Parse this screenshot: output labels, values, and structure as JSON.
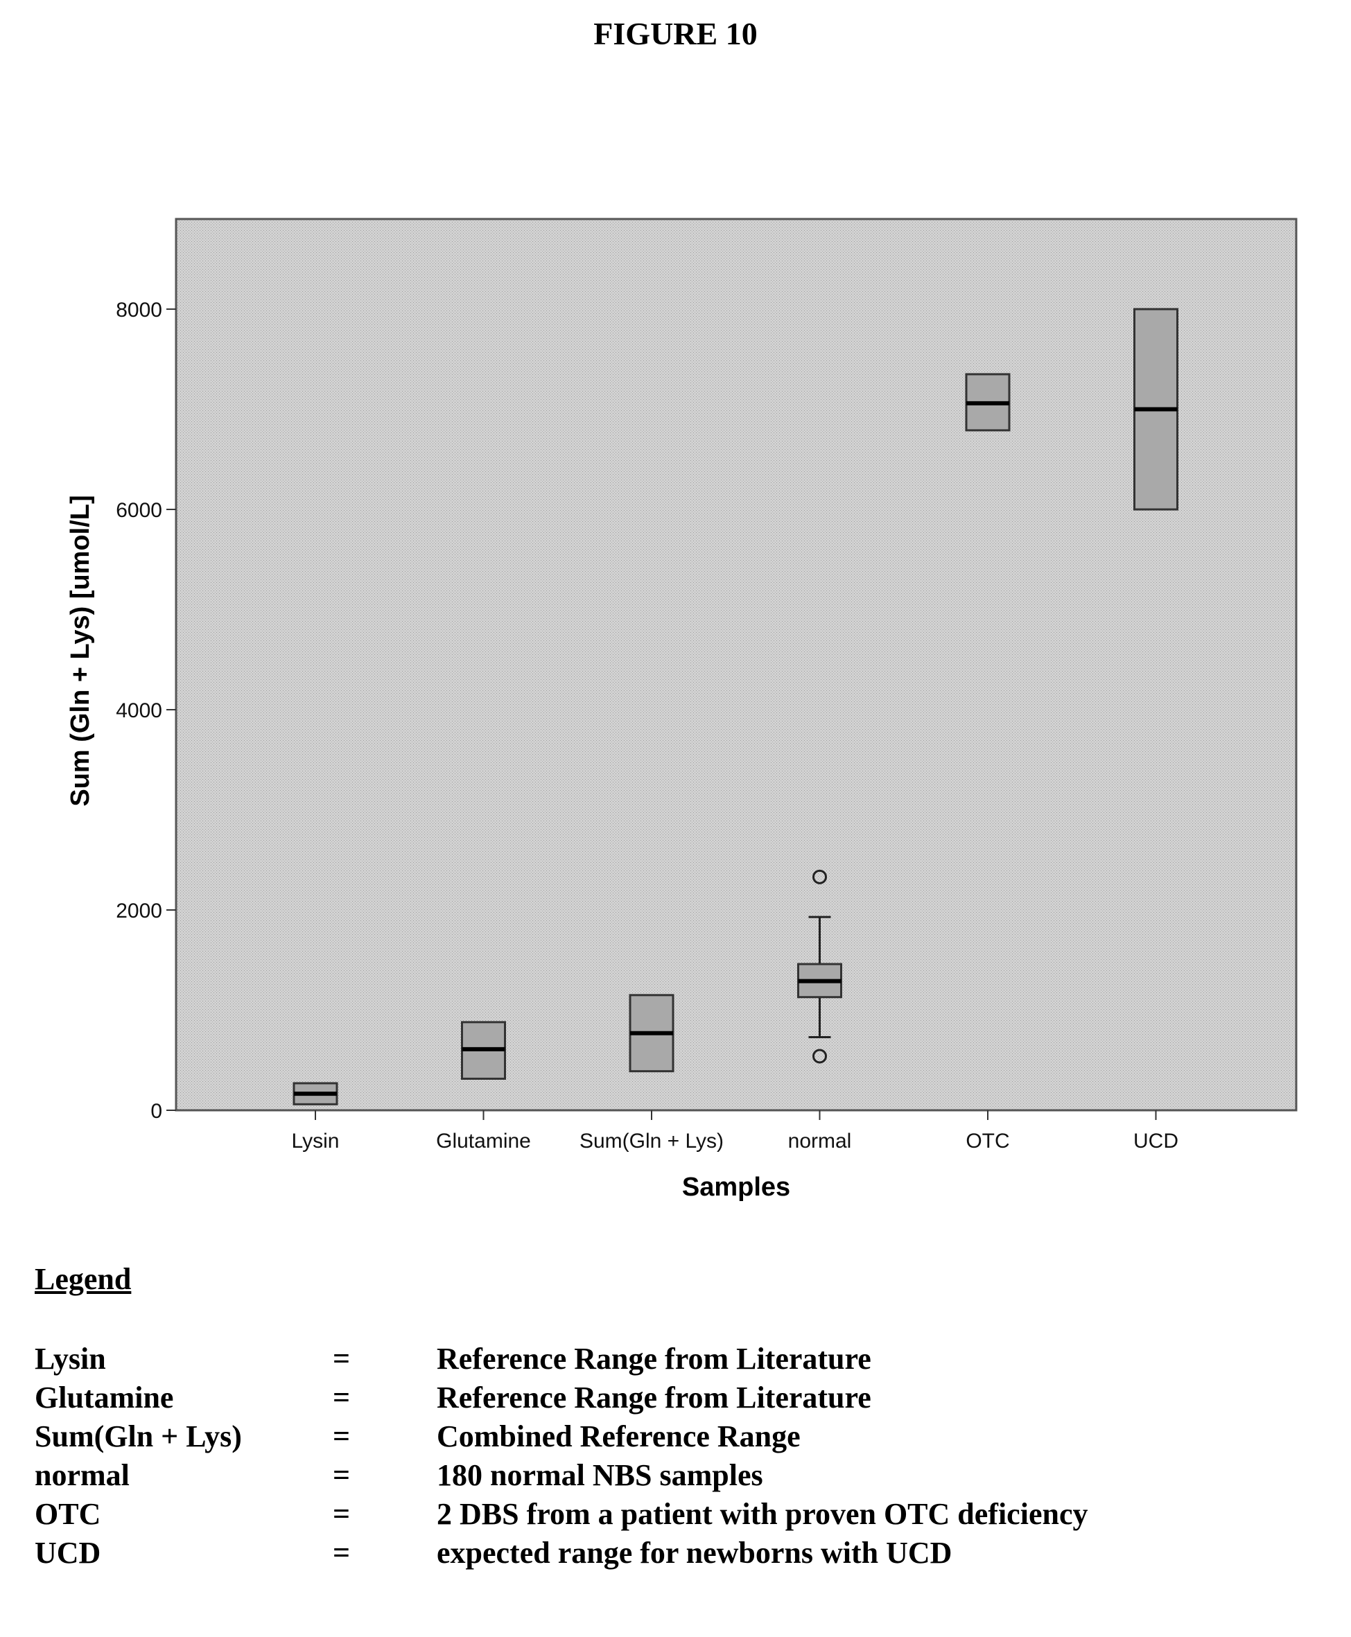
{
  "figure_title": "FIGURE 10",
  "chart_data": {
    "type": "boxplot",
    "xlabel": "Samples",
    "ylabel": "Sum (Gln + Lys) [umol/L]",
    "ylim": [
      0,
      8900
    ],
    "yticks": [
      0,
      2000,
      4000,
      6000,
      8000
    ],
    "grid": false,
    "categories": [
      "Lysin",
      "Glutamine",
      "Sum(Gln + Lys)",
      "normal",
      "OTC",
      "UCD"
    ],
    "boxes": [
      {
        "category": "Lysin",
        "q1": 60,
        "median": 165,
        "q3": 270
      },
      {
        "category": "Glutamine",
        "q1": 315,
        "median": 610,
        "q3": 880
      },
      {
        "category": "Sum(Gln + Lys)",
        "q1": 390,
        "median": 770,
        "q3": 1150
      },
      {
        "category": "normal",
        "q1": 1130,
        "median": 1290,
        "q3": 1460,
        "whisker_low": 730,
        "whisker_high": 1930,
        "outliers": [
          540,
          2330
        ]
      },
      {
        "category": "OTC",
        "q1": 6790,
        "median": 7060,
        "q3": 7350
      },
      {
        "category": "UCD",
        "q1": 6000,
        "median": 7000,
        "q3": 8000
      }
    ]
  },
  "legend": {
    "heading": "Legend",
    "items": [
      {
        "key": "Lysin",
        "eq": "=",
        "desc": "Reference Range from Literature"
      },
      {
        "key": "Glutamine",
        "eq": "=",
        "desc": "Reference Range from Literature"
      },
      {
        "key": "Sum(Gln + Lys)",
        "eq": "=",
        "desc": "Combined Reference Range"
      },
      {
        "key": "normal",
        "eq": "=",
        "desc": "180 normal NBS samples"
      },
      {
        "key": "OTC",
        "eq": "=",
        "desc": "2 DBS from a patient with proven OTC deficiency"
      },
      {
        "key": "UCD",
        "eq": "=",
        "desc": "expected range for newborns with UCD"
      }
    ]
  },
  "colors": {
    "plot_background": "#cfcfcf",
    "box_fill": "#a9a9a9",
    "frame": "#555555",
    "median": "#000000"
  }
}
